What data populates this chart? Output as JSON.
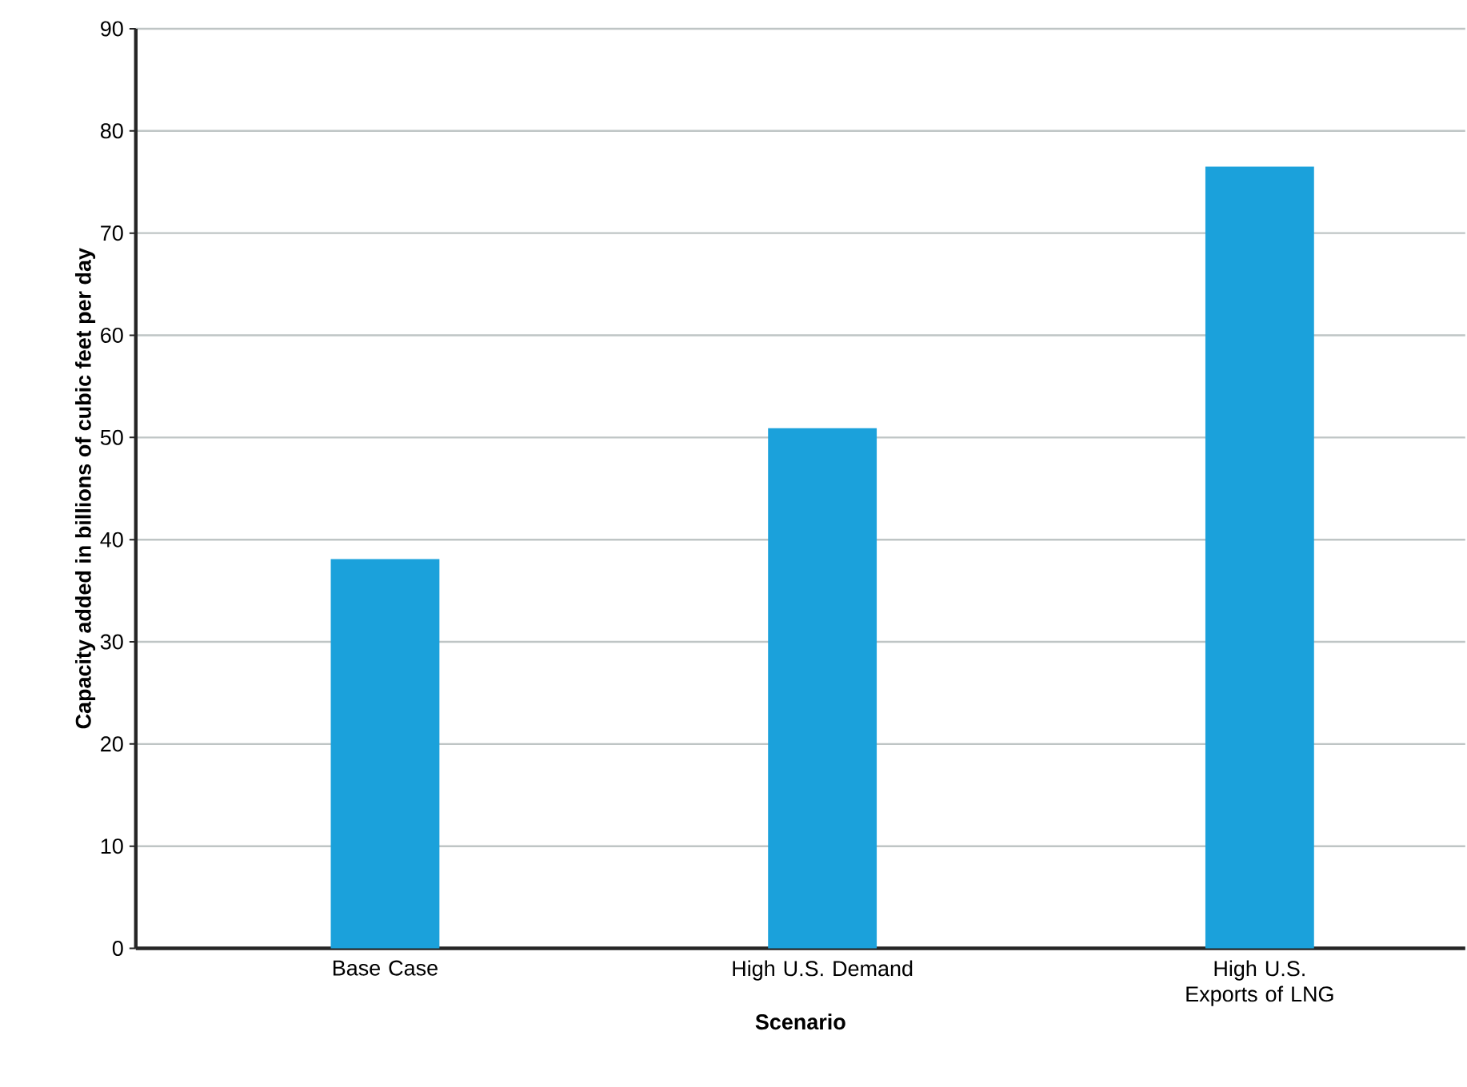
{
  "chart_data": {
    "type": "bar",
    "xlabel": "Scenario",
    "ylabel": "Capacity added in billions of cubic feet per day",
    "categories": [
      "Base Case",
      "High U.S. Demand",
      "High U.S. Exports of LNG"
    ],
    "values": [
      38.1,
      50.9,
      76.5
    ],
    "color": "#1ba1db",
    "ylim": [
      0,
      90
    ],
    "yticks": [
      0,
      10,
      20,
      30,
      40,
      50,
      60,
      70,
      80,
      90
    ],
    "grid": "y"
  }
}
